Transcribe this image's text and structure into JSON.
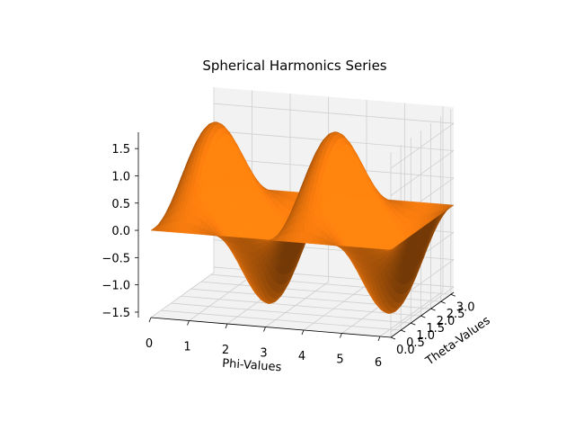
{
  "chart_data": {
    "type": "surface3d",
    "title": "Spherical Harmonics Series",
    "xlabel": "Phi-Values",
    "ylabel": "Theta-Values",
    "zlabel": "",
    "xlim": [
      0,
      6.2832
    ],
    "ylim": [
      0,
      3.1416
    ],
    "zlim": [
      -1.6,
      1.8
    ],
    "x_ticks": [
      "0",
      "1",
      "2",
      "3",
      "4",
      "5",
      "6"
    ],
    "y_ticks": [
      "0.0",
      "0.5",
      "1.0",
      "1.5",
      "2.0",
      "2.5",
      "3.0"
    ],
    "z_ticks": [
      "−1.5",
      "−1.0",
      "−0.5",
      "0.0",
      "0.5",
      "1.0",
      "1.5"
    ],
    "surface": {
      "function": "z = 1.6 * sin(2*phi) * sin(theta)",
      "phi_range": [
        0,
        6.2832
      ],
      "theta_range": [
        0,
        3.1416
      ],
      "peaks": [
        {
          "phi": 0.785,
          "z": 1.6
        },
        {
          "phi": 3.927,
          "z": 1.6
        }
      ],
      "troughs": [
        {
          "phi": 2.356,
          "z": -1.6
        },
        {
          "phi": 5.498,
          "z": -1.6
        }
      ],
      "color": "#ff7f0e"
    },
    "grid": true,
    "pane_color": "#f2f2f2",
    "grid_color": "#cfcfcf"
  }
}
